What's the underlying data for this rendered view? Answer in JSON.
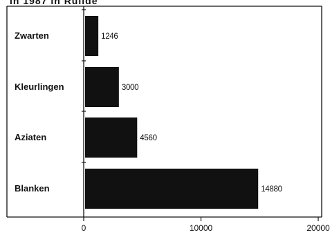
{
  "header_fragment": "in 1987 in Ruilde",
  "chart_data": {
    "type": "bar",
    "orientation": "horizontal",
    "categories": [
      "Zwarten",
      "Kleurlingen",
      "Aziaten",
      "Blanken"
    ],
    "values": [
      1246,
      3000,
      4560,
      14880
    ],
    "value_labels": [
      "1246",
      "3000",
      "4560",
      "14880"
    ],
    "xlim": [
      0,
      20000
    ],
    "xticks": [
      "0",
      "10000",
      "20000"
    ],
    "bar_color": "#111111",
    "grid": false
  }
}
